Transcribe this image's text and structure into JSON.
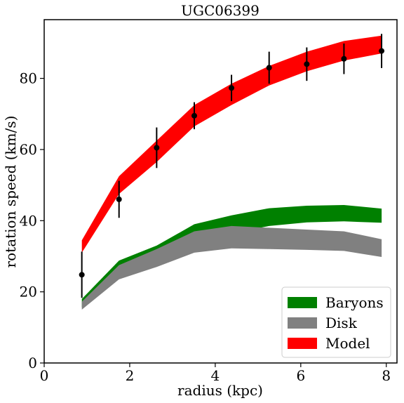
{
  "chart_data": {
    "type": "line",
    "title": "UGC06399",
    "xlabel": "radius (kpc)",
    "ylabel": "rotation speed (km/s)",
    "xlim": [
      0,
      8.25
    ],
    "ylim": [
      0,
      96.5
    ],
    "xticks": [
      0,
      2,
      4,
      6,
      8
    ],
    "yticks": [
      0,
      20,
      40,
      60,
      80
    ],
    "grid": false,
    "legend_position": "lower-right",
    "x": [
      0.88,
      1.75,
      2.63,
      3.51,
      4.38,
      5.26,
      6.14,
      7.01,
      7.89
    ],
    "series": [
      {
        "name": "Baryons",
        "kind": "band",
        "color": "#008000",
        "lower": [
          15.6,
          24.2,
          28.5,
          34.0,
          36.5,
          38.5,
          39.5,
          39.8,
          39.4
        ],
        "upper": [
          18.0,
          28.8,
          33.0,
          39.0,
          41.5,
          43.5,
          44.2,
          44.4,
          43.4
        ]
      },
      {
        "name": "Disk",
        "kind": "band",
        "color": "#808080",
        "lower": [
          15.0,
          23.5,
          27.0,
          31.0,
          32.2,
          32.0,
          31.8,
          31.5,
          29.8
        ],
        "upper": [
          17.2,
          27.5,
          32.0,
          37.0,
          38.5,
          38.0,
          37.5,
          37.0,
          34.8
        ]
      },
      {
        "name": "Model",
        "kind": "band",
        "color": "#ff0000",
        "lower": [
          31.0,
          47.5,
          56.5,
          66.5,
          72.5,
          78.0,
          82.0,
          85.0,
          87.0
        ],
        "upper": [
          34.5,
          52.5,
          62.5,
          72.5,
          78.5,
          83.5,
          87.5,
          90.5,
          92.0
        ]
      },
      {
        "name": "data",
        "kind": "errorbar",
        "color": "#000000",
        "y": [
          24.8,
          46.0,
          60.5,
          69.5,
          77.3,
          83.0,
          84.0,
          85.5,
          87.7
        ],
        "yerr": [
          6.5,
          5.2,
          5.7,
          3.8,
          3.7,
          4.5,
          4.7,
          4.3,
          4.8
        ]
      }
    ]
  }
}
